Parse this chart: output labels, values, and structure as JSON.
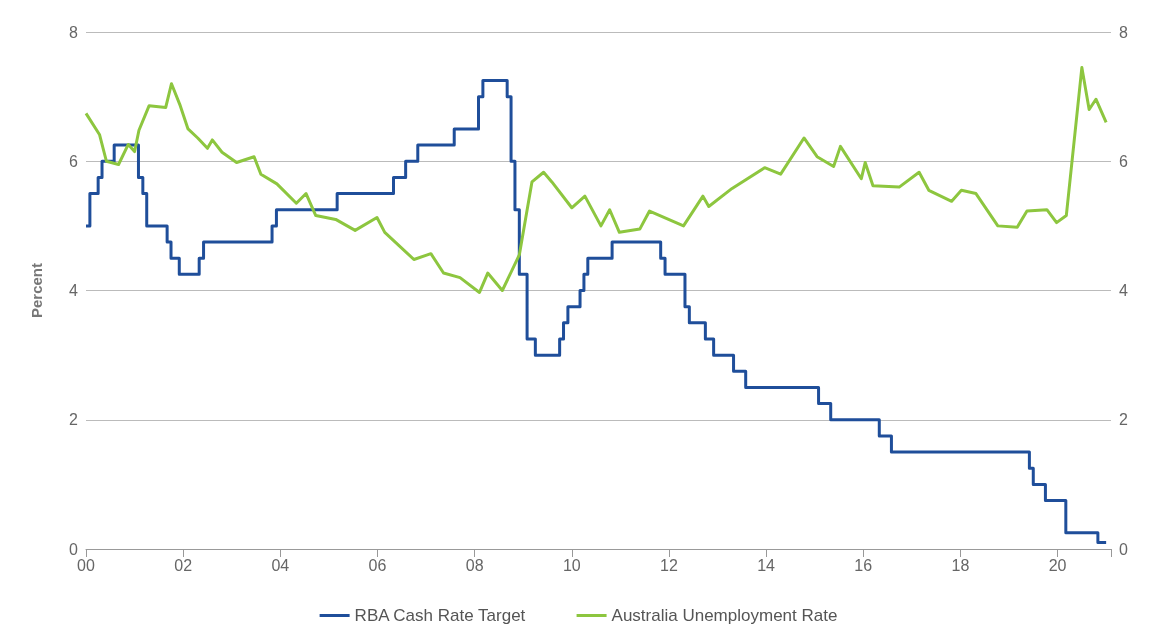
{
  "chart_data": {
    "type": "line",
    "ylabel": "Percent",
    "xlim": [
      0,
      21.1
    ],
    "xticks": [
      {
        "value": 0,
        "label": "00"
      },
      {
        "value": 2,
        "label": "02"
      },
      {
        "value": 4,
        "label": "04"
      },
      {
        "value": 6,
        "label": "06"
      },
      {
        "value": 8,
        "label": "08"
      },
      {
        "value": 10,
        "label": "10"
      },
      {
        "value": 12,
        "label": "12"
      },
      {
        "value": 14,
        "label": "14"
      },
      {
        "value": 16,
        "label": "16"
      },
      {
        "value": 18,
        "label": "18"
      },
      {
        "value": 20,
        "label": "20"
      }
    ],
    "ylim": [
      0,
      8
    ],
    "yticks": [
      0,
      2,
      4,
      6,
      8
    ],
    "y2lim": [
      0,
      8
    ],
    "y2ticks": [
      0,
      2,
      4,
      6,
      8
    ],
    "grid": "y",
    "legend": "bottom",
    "line_style": "solid",
    "series": [
      {
        "name": "RBA Cash Rate Target",
        "type": "step",
        "color": "#1f4e9a",
        "x": [
          0,
          0.08,
          0.25,
          0.33,
          0.58,
          1.08,
          1.17,
          1.25,
          1.67,
          1.75,
          1.92,
          2.33,
          2.42,
          3.83,
          3.92,
          5.17,
          6.33,
          6.58,
          6.83,
          7.58,
          8.08,
          8.17,
          8.67,
          8.75,
          8.83,
          8.92,
          9.08,
          9.25,
          9.75,
          9.83,
          9.92,
          10.17,
          10.25,
          10.33,
          10.83,
          11.83,
          11.92,
          12.33,
          12.42,
          12.75,
          12.92,
          13.33,
          13.58,
          15.08,
          15.33,
          16.33,
          16.58,
          19.42,
          19.5,
          19.75,
          20.17,
          20.83,
          21.0
        ],
        "values": [
          5.0,
          5.5,
          5.75,
          6.0,
          6.25,
          5.75,
          5.5,
          5.0,
          4.75,
          4.5,
          4.25,
          4.5,
          4.75,
          5.0,
          5.25,
          5.5,
          5.75,
          6.0,
          6.25,
          6.5,
          7.0,
          7.25,
          7.0,
          6.0,
          5.25,
          4.25,
          3.25,
          3.0,
          3.25,
          3.5,
          3.75,
          4.0,
          4.25,
          4.5,
          4.75,
          4.5,
          4.25,
          3.75,
          3.5,
          3.25,
          3.0,
          2.75,
          2.5,
          2.25,
          2.0,
          1.75,
          1.5,
          1.25,
          1.0,
          0.75,
          0.25,
          0.1,
          0.1
        ]
      },
      {
        "name": "Australia Unemployment Rate",
        "color": "#8dc63f",
        "x": [
          0,
          0.28,
          0.42,
          0.67,
          0.87,
          1.0,
          1.09,
          1.3,
          1.64,
          1.76,
          1.94,
          2.1,
          2.3,
          2.5,
          2.6,
          2.8,
          3.1,
          3.46,
          3.6,
          3.93,
          4.33,
          4.53,
          4.73,
          5.14,
          5.54,
          5.99,
          6.15,
          6.75,
          7.1,
          7.36,
          7.7,
          8.1,
          8.27,
          8.57,
          8.92,
          9.18,
          9.42,
          9.59,
          10.0,
          10.27,
          10.6,
          10.78,
          10.98,
          11.4,
          11.6,
          12.3,
          12.7,
          12.82,
          13.3,
          13.97,
          14.3,
          14.78,
          15.05,
          15.39,
          15.53,
          15.96,
          16.04,
          16.2,
          16.74,
          17.15,
          17.35,
          17.82,
          18.02,
          18.32,
          18.77,
          19.17,
          19.37,
          19.78,
          19.98,
          20.18,
          20.5,
          20.65,
          20.79,
          21.0
        ],
        "values": [
          6.74,
          6.41,
          6.0,
          5.95,
          6.26,
          6.15,
          6.48,
          6.86,
          6.83,
          7.2,
          6.86,
          6.5,
          6.36,
          6.2,
          6.33,
          6.14,
          5.98,
          6.07,
          5.8,
          5.65,
          5.35,
          5.5,
          5.16,
          5.1,
          4.93,
          5.13,
          4.9,
          4.48,
          4.57,
          4.27,
          4.2,
          3.97,
          4.27,
          4.0,
          4.55,
          5.68,
          5.83,
          5.68,
          5.28,
          5.46,
          5.0,
          5.25,
          4.9,
          4.95,
          5.23,
          5.0,
          5.46,
          5.3,
          5.58,
          5.9,
          5.8,
          6.36,
          6.07,
          5.92,
          6.23,
          5.73,
          5.98,
          5.62,
          5.6,
          5.83,
          5.55,
          5.38,
          5.55,
          5.5,
          5.0,
          4.98,
          5.23,
          5.25,
          5.05,
          5.16,
          7.45,
          6.8,
          6.96,
          6.6
        ]
      }
    ]
  }
}
